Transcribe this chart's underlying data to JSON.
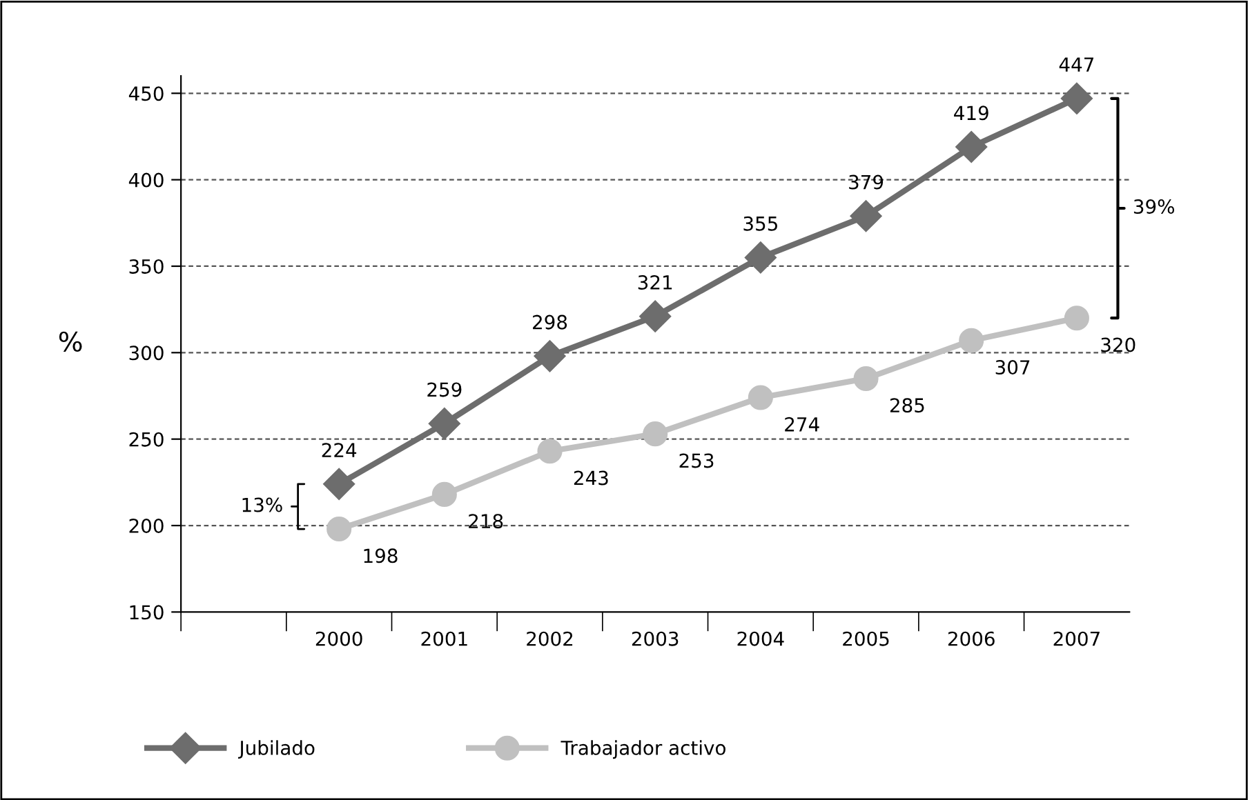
{
  "chart_data": {
    "type": "line",
    "ylabel": "%",
    "categories": [
      null,
      "2000",
      "2001",
      "2002",
      "2003",
      "2004",
      "2005",
      "2006",
      "2007"
    ],
    "series": [
      {
        "name": "Jubilado",
        "color": "#6d6d6d",
        "marker": "diamond",
        "values": [
          null,
          224,
          259,
          298,
          321,
          355,
          379,
          419,
          447
        ]
      },
      {
        "name": "Trabajador activo",
        "color": "#c0c0c0",
        "marker": "circle",
        "values": [
          null,
          198,
          218,
          243,
          253,
          274,
          285,
          307,
          320
        ]
      }
    ],
    "ylim": [
      150,
      460
    ],
    "yticks": [
      150,
      200,
      250,
      300,
      350,
      400,
      450
    ],
    "grid": "y",
    "legend": "bottom",
    "data_labels": true,
    "annotations": [
      "13%",
      "39%"
    ]
  }
}
